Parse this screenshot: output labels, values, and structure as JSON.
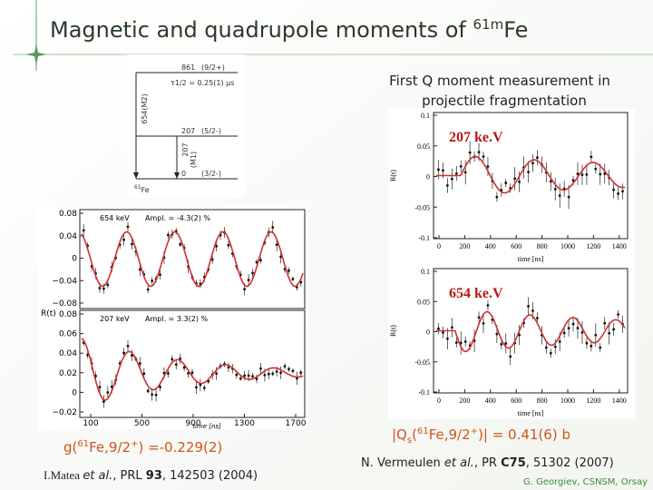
{
  "title": {
    "text": "Magnetic and quadrupole moments of ",
    "superscript": "61m",
    "element": "Fe"
  },
  "level_scheme": {
    "levels": [
      {
        "energy": "861",
        "spin": "(9/2+)"
      },
      {
        "energy": "207",
        "spin": "(5/2-)"
      },
      {
        "energy": "0",
        "spin": "(3/2-)"
      }
    ],
    "transitions": [
      {
        "energy": "654(M2)"
      },
      {
        "energy": "207",
        "multipolarity": "(M1)"
      }
    ],
    "half_life": "τ1/2 = 0.25(1) μs",
    "nucleus": {
      "mass": "61",
      "element": "Fe"
    }
  },
  "left_plot": {
    "panels": [
      {
        "label": "654 keV",
        "amplitude": "Ampl. = -4.3(2) %",
        "yticks": [
          "0.08",
          "0.04",
          "0",
          "−0.04",
          "−0.08"
        ]
      },
      {
        "label": "207 keV",
        "amplitude": "Ampl. = 3.3(2) %",
        "yticks": [
          "0.08",
          "0.06",
          "0.04",
          "0.02",
          "0",
          "−0.02"
        ]
      }
    ],
    "xticks": [
      "100",
      "500",
      "900",
      "1300",
      "1700"
    ],
    "xlabel": "time [ns]",
    "ylabel": "R(t)"
  },
  "g_factor": {
    "prefix": "g(",
    "mass": "61",
    "rest": "Fe,9/2",
    "spin_sup": "+",
    "suffix": ") =-0.229(2)"
  },
  "left_reference": {
    "author": "I.Matea ",
    "etal": "et al.",
    "journal": ", PRL ",
    "volume": "93",
    "rest": ", 142503 (2004)"
  },
  "right_heading": [
    "First Q moment measurement in",
    "projectile fragmentation"
  ],
  "right_plots": [
    {
      "label": "207 ke.V",
      "yticks": [
        "0.1",
        "0.05",
        "0",
        "-0.05",
        "-0.1"
      ],
      "xticks": [
        "0",
        "200",
        "400",
        "600",
        "800",
        "1000",
        "1200",
        "1400"
      ],
      "xlabel": "time [ns]",
      "ylabel": "R(t)"
    },
    {
      "label": "654 ke.V",
      "yticks": [
        "0.1",
        "0.05",
        "0",
        "-0.05",
        "-0.1"
      ],
      "xticks": [
        "0",
        "200",
        "400",
        "600",
        "800",
        "1000",
        "1200",
        "1400"
      ],
      "xlabel": "time [ns]",
      "ylabel": "R(t)"
    }
  ],
  "quadrupole": {
    "prefix": "|Q",
    "sub": "s",
    "open": "(",
    "mass": "61",
    "rest": "Fe,9/2",
    "spin_sup": "+",
    "suffix": ")| = 0.41(6) b"
  },
  "right_reference": {
    "author": "N. Vermeulen ",
    "etal": "et al.",
    "journal": ", PR ",
    "volume": "C75",
    "rest": ", 51302 (2007)"
  },
  "footer": "G. Georgiev, CSNSM, Orsay"
}
